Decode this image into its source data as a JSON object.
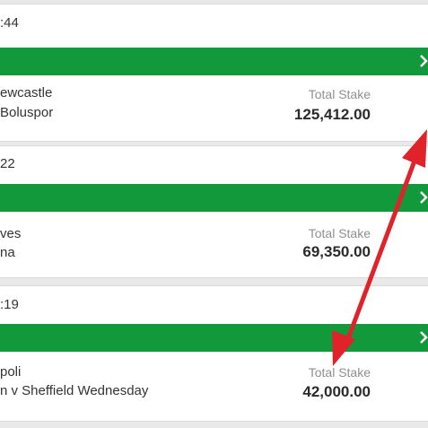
{
  "cards": [
    {
      "time": ":44",
      "team1": "ewcastle",
      "team2": "Boluspor",
      "stake_label": "Total Stake",
      "stake_amount": "125,412.00"
    },
    {
      "time": "22",
      "team1": "ves",
      "team2": "na",
      "stake_label": "Total Stake",
      "stake_amount": "69,350.00"
    },
    {
      "time": ":19",
      "team1": "poli",
      "team2": "n v Sheffield Wednesday",
      "stake_label": "Total Stake",
      "stake_amount": "42,000.00"
    }
  ],
  "colors": {
    "green_bar": "#12993c",
    "arrow": "#e0222a",
    "stake_label": "#8f8f8f"
  },
  "icons": {
    "bar_chevron": "chevron-right-icon",
    "annotation": "double-headed-arrow-icon"
  }
}
